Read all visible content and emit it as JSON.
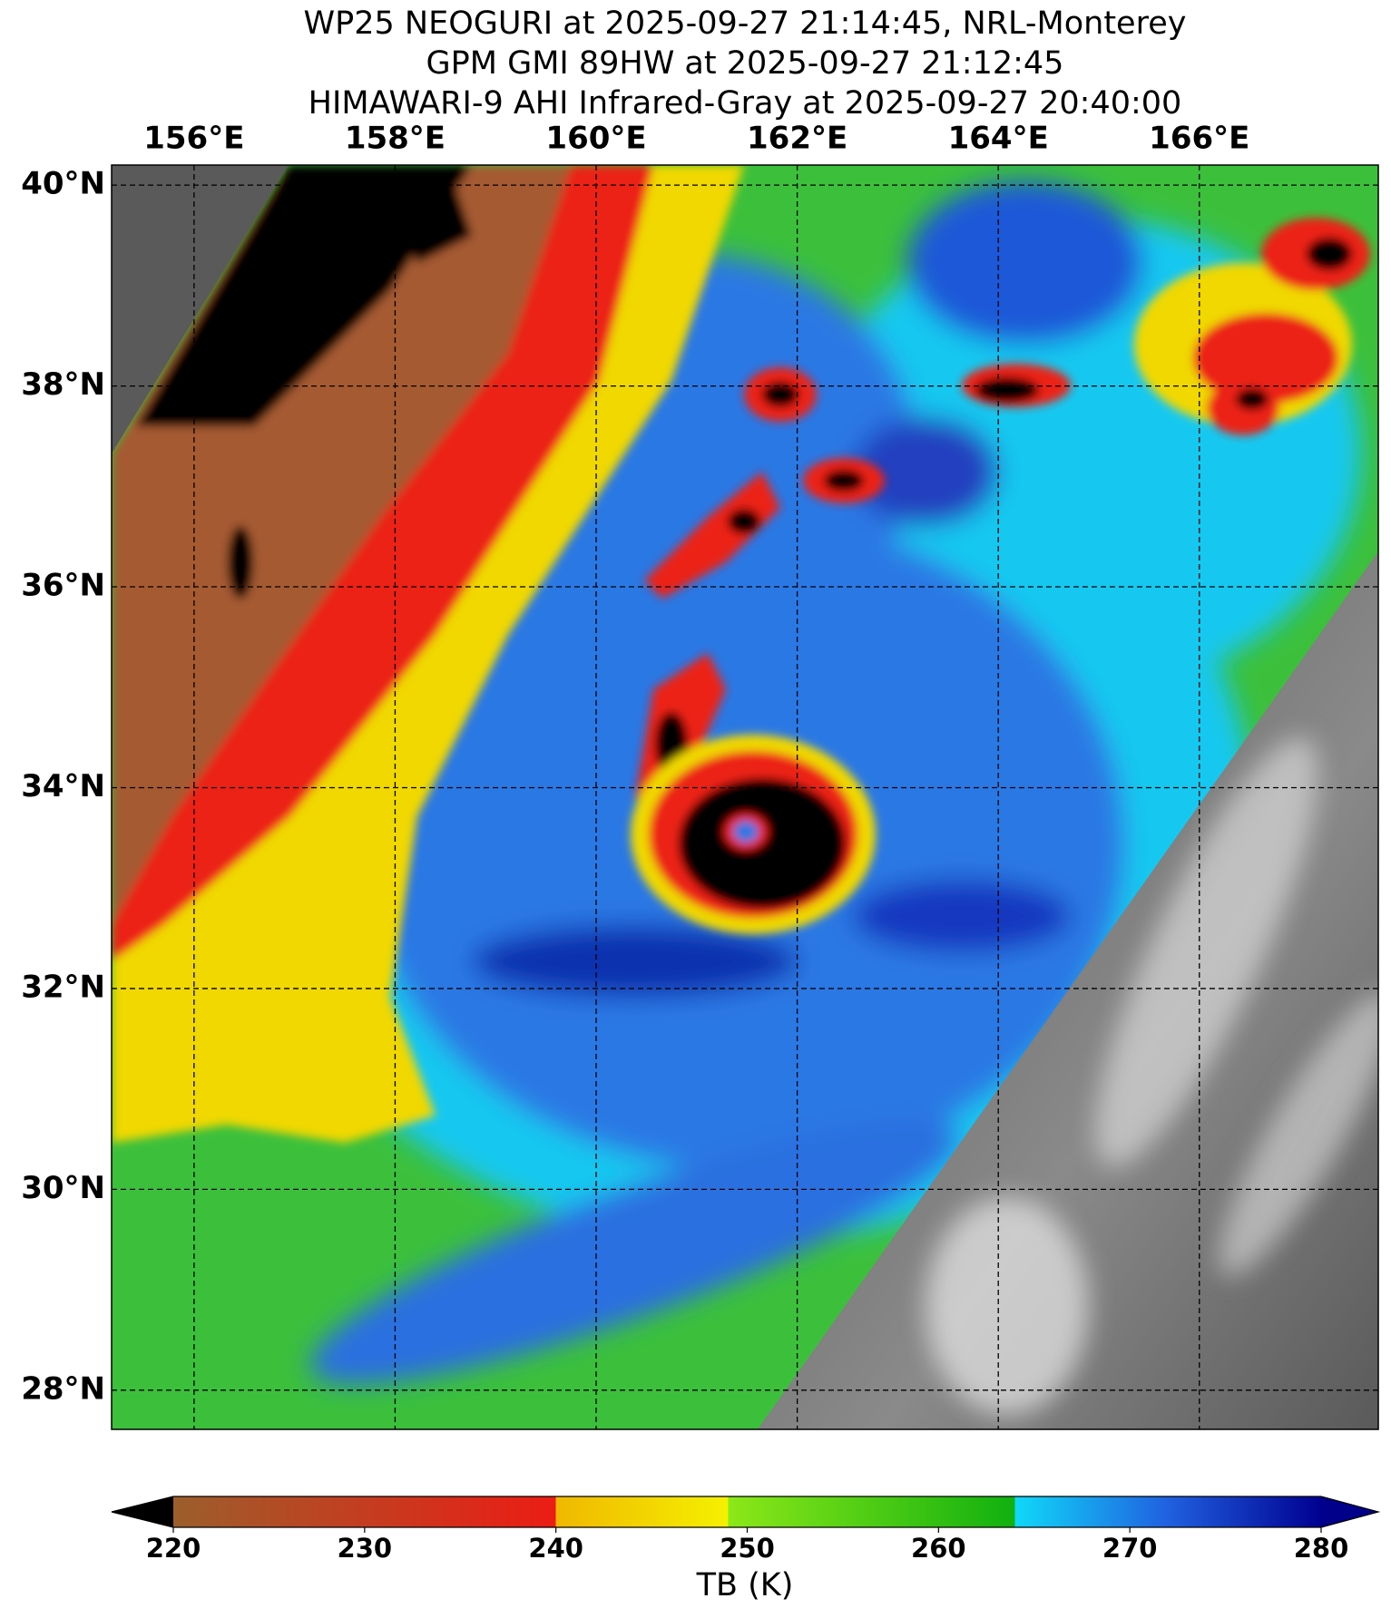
{
  "header": {
    "title_lines": [
      "WP25 NEOGURI at 2025-09-27 21:14:45, NRL-Monterey",
      "GPM GMI 89HW at 2025-09-27 21:12:45",
      "HIMAWARI-9 AHI Infrared-Gray at 2025-09-27 20:40:00"
    ]
  },
  "map": {
    "lonlim": [
      155.18,
      167.78
    ],
    "latlim": [
      27.61,
      40.2
    ],
    "lon_ticks": [
      {
        "value": 156,
        "label": "156°E"
      },
      {
        "value": 158,
        "label": "158°E"
      },
      {
        "value": 160,
        "label": "160°E"
      },
      {
        "value": 162,
        "label": "162°E"
      },
      {
        "value": 164,
        "label": "164°E"
      },
      {
        "value": 166,
        "label": "166°E"
      }
    ],
    "lat_ticks": [
      {
        "value": 28,
        "label": "28°N"
      },
      {
        "value": 30,
        "label": "30°N"
      },
      {
        "value": 32,
        "label": "32°N"
      },
      {
        "value": 34,
        "label": "34°N"
      },
      {
        "value": 36,
        "label": "36°N"
      },
      {
        "value": 38,
        "label": "38°N"
      },
      {
        "value": 40,
        "label": "40°N"
      }
    ]
  },
  "colorbar": {
    "label": "TB (K)",
    "lim": [
      220,
      280
    ],
    "ticks": [
      220,
      230,
      240,
      250,
      260,
      270,
      280
    ],
    "under_color": "#000000",
    "over_color": "#00008b",
    "stops": [
      {
        "value": 220,
        "color": "#9c5e2c"
      },
      {
        "value": 240,
        "color": "#ec1c14"
      },
      {
        "value": 240,
        "color": "#f0b800"
      },
      {
        "value": 249,
        "color": "#f5f000"
      },
      {
        "value": 249,
        "color": "#8ce818"
      },
      {
        "value": 264,
        "color": "#10b010"
      },
      {
        "value": 264,
        "color": "#10d8f8"
      },
      {
        "value": 272,
        "color": "#2060e0"
      },
      {
        "value": 280,
        "color": "#000090"
      }
    ]
  }
}
